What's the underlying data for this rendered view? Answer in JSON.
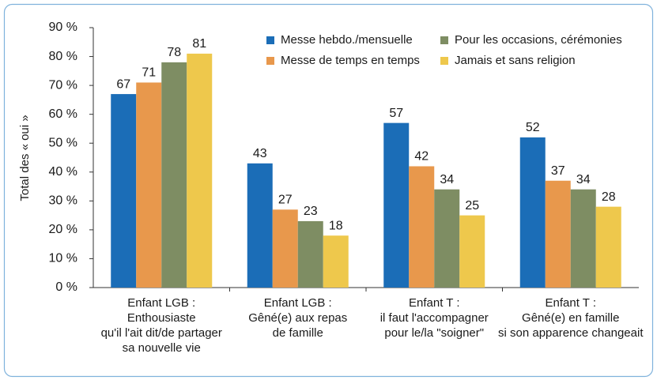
{
  "chart_data": {
    "type": "bar",
    "y_label": "Total des « oui »",
    "categories": [
      [
        "Enfant LGB :",
        "Enthousiaste",
        "qu'il l'ait dit/de partager",
        "sa nouvelle vie"
      ],
      [
        "Enfant LGB :",
        "Gêné(e) aux repas",
        "de famille"
      ],
      [
        "Enfant T :",
        "il faut l'accompagner",
        "pour le/la \"soigner\""
      ],
      [
        "Enfant T :",
        "Gêné(e) en famille",
        "si son apparence changeait"
      ]
    ],
    "series": [
      {
        "name": "Messe hebdo./mensuelle",
        "color": "#1b6db7",
        "values": [
          67,
          43,
          57,
          52
        ]
      },
      {
        "name": "Messe de temps en temps",
        "color": "#e8984c",
        "values": [
          71,
          27,
          42,
          37
        ]
      },
      {
        "name": "Pour les occasions, cérémonies",
        "color": "#7e8d63",
        "values": [
          78,
          23,
          34,
          34
        ]
      },
      {
        "name": "Jamais et sans religion",
        "color": "#eec84c",
        "values": [
          81,
          18,
          25,
          28
        ]
      }
    ],
    "ylim": [
      0,
      90
    ],
    "yticks": [
      {
        "value": 0,
        "label": "0 %"
      },
      {
        "value": 10,
        "label": "10 %"
      },
      {
        "value": 20,
        "label": "20 %"
      },
      {
        "value": 30,
        "label": "30 %"
      },
      {
        "value": 40,
        "label": "40 %"
      },
      {
        "value": 50,
        "label": "50 %"
      },
      {
        "value": 60,
        "label": "60 %"
      },
      {
        "value": 70,
        "label": "70 %"
      },
      {
        "value": 80,
        "label": "80 %"
      },
      {
        "value": 90,
        "label": "90 %"
      }
    ],
    "grid": false,
    "legend": "top-right"
  }
}
